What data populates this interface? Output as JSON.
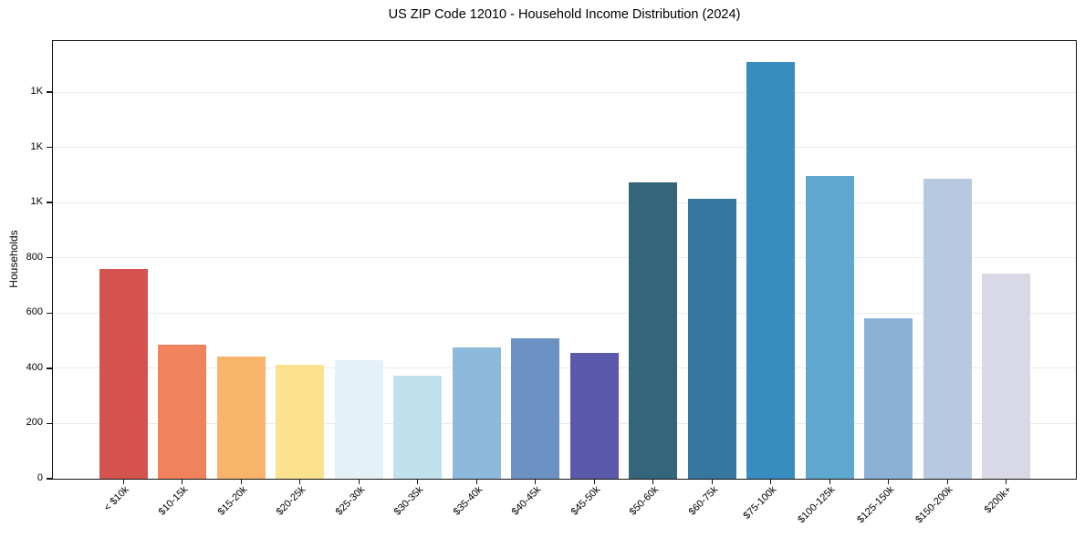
{
  "chart_data": {
    "type": "bar",
    "title": "US ZIP Code 12010 - Household Income Distribution (2024)",
    "xlabel": "",
    "ylabel": "Households",
    "categories": [
      "< $10k",
      "$10-15k",
      "$15-20k",
      "$20-25k",
      "$25-30k",
      "$30-35k",
      "$35-40k",
      "$40-45k",
      "$45-50k",
      "$50-60k",
      "$60-75k",
      "$75-100k",
      "$100-125k",
      "$125-150k",
      "$150-200k",
      "$200k+"
    ],
    "values": [
      760,
      487,
      442,
      412,
      428,
      372,
      477,
      510,
      456,
      1073,
      1014,
      1510,
      1098,
      582,
      1085,
      744
    ],
    "bar_colors": [
      "#d5534e",
      "#f0825c",
      "#f9b46b",
      "#fce18f",
      "#e4f2f8",
      "#c0e0ed",
      "#8db9da",
      "#6c92c4",
      "#5a59ab",
      "#34657a",
      "#35779f",
      "#388dc0",
      "#5fa7ce",
      "#8bb2d6",
      "#b7c8e1",
      "#d8d8e7"
    ],
    "ylim": [
      0,
      1585
    ],
    "yticks": [
      {
        "value": 0,
        "label": "0"
      },
      {
        "value": 200,
        "label": "200"
      },
      {
        "value": 400,
        "label": "400"
      },
      {
        "value": 600,
        "label": "600"
      },
      {
        "value": 800,
        "label": "800"
      },
      {
        "value": 1000,
        "label": "1K"
      },
      {
        "value": 1200,
        "label": "1K"
      },
      {
        "value": 1400,
        "label": "1K"
      }
    ],
    "grid": "horizontal",
    "legend": "none",
    "style": {
      "background": "#ffffff",
      "grid_color": "#eaeaea",
      "spine_color": "#141414",
      "text_color": "#000000"
    }
  }
}
